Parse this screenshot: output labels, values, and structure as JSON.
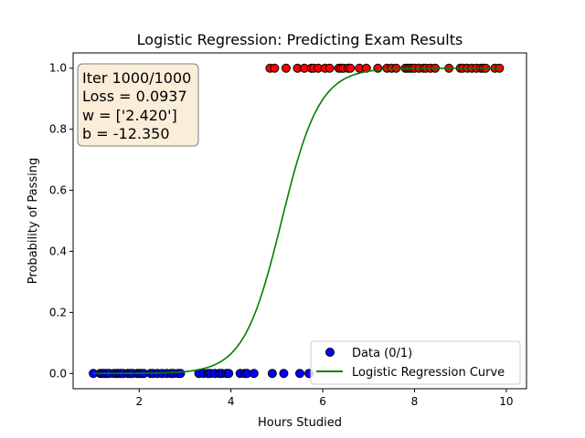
{
  "chart_data": {
    "type": "scatter",
    "title": "Logistic Regression: Predicting Exam Results",
    "xlabel": "Hours Studied",
    "ylabel": "Probability of Passing",
    "xlim": [
      0.56,
      10.44
    ],
    "ylim": [
      -0.05,
      1.05
    ],
    "xticks": [
      2,
      4,
      6,
      8,
      10
    ],
    "yticks": [
      0.0,
      0.2,
      0.4,
      0.6,
      0.8,
      1.0
    ],
    "grid": false,
    "legend_position": "lower-right",
    "legend": [
      {
        "label": "Data (0/1)",
        "kind": "marker"
      },
      {
        "label": "Logistic Regression Curve",
        "kind": "line"
      }
    ],
    "annotation": {
      "lines": [
        "Iter 1000/1000",
        "Loss = 0.0937",
        "w = ['2.420']",
        "b = -12.350"
      ],
      "position": "top-left"
    },
    "model": {
      "w": 2.42,
      "b": -12.35
    },
    "series": [
      {
        "name": "Data (0/1)",
        "class0_color": "#0000ff",
        "class1_color": "#ff0000",
        "points": [
          [
            1.0,
            0
          ],
          [
            1.15,
            0
          ],
          [
            1.2,
            0
          ],
          [
            1.25,
            0
          ],
          [
            1.3,
            0
          ],
          [
            1.35,
            0
          ],
          [
            1.45,
            0
          ],
          [
            1.5,
            0
          ],
          [
            1.55,
            0
          ],
          [
            1.6,
            0
          ],
          [
            1.65,
            0
          ],
          [
            1.75,
            0
          ],
          [
            1.8,
            0
          ],
          [
            1.85,
            0
          ],
          [
            1.95,
            0
          ],
          [
            2.0,
            0
          ],
          [
            2.05,
            0
          ],
          [
            2.1,
            0
          ],
          [
            2.25,
            0
          ],
          [
            2.3,
            0
          ],
          [
            2.4,
            0
          ],
          [
            2.5,
            0
          ],
          [
            2.6,
            0
          ],
          [
            2.7,
            0
          ],
          [
            2.75,
            0
          ],
          [
            2.85,
            0
          ],
          [
            2.9,
            0
          ],
          [
            3.3,
            0
          ],
          [
            3.4,
            0
          ],
          [
            3.5,
            0
          ],
          [
            3.55,
            0
          ],
          [
            3.65,
            0
          ],
          [
            3.75,
            0
          ],
          [
            3.8,
            0
          ],
          [
            3.9,
            0
          ],
          [
            3.95,
            0
          ],
          [
            4.2,
            0
          ],
          [
            4.3,
            0
          ],
          [
            4.35,
            0
          ],
          [
            4.5,
            0
          ],
          [
            4.9,
            0
          ],
          [
            5.15,
            0
          ],
          [
            5.5,
            0
          ],
          [
            5.7,
            0
          ],
          [
            4.85,
            1
          ],
          [
            4.95,
            1
          ],
          [
            5.2,
            1
          ],
          [
            5.45,
            1
          ],
          [
            5.6,
            1
          ],
          [
            5.75,
            1
          ],
          [
            5.8,
            1
          ],
          [
            5.9,
            1
          ],
          [
            6.05,
            1
          ],
          [
            6.15,
            1
          ],
          [
            6.35,
            1
          ],
          [
            6.4,
            1
          ],
          [
            6.45,
            1
          ],
          [
            6.55,
            1
          ],
          [
            6.6,
            1
          ],
          [
            6.8,
            1
          ],
          [
            6.95,
            1
          ],
          [
            7.2,
            1
          ],
          [
            7.4,
            1
          ],
          [
            7.5,
            1
          ],
          [
            7.6,
            1
          ],
          [
            7.8,
            1
          ],
          [
            7.85,
            1
          ],
          [
            7.9,
            1
          ],
          [
            7.95,
            1
          ],
          [
            8.0,
            1
          ],
          [
            8.1,
            1
          ],
          [
            8.2,
            1
          ],
          [
            8.25,
            1
          ],
          [
            8.35,
            1
          ],
          [
            8.45,
            1
          ],
          [
            8.75,
            1
          ],
          [
            9.0,
            1
          ],
          [
            9.05,
            1
          ],
          [
            9.15,
            1
          ],
          [
            9.25,
            1
          ],
          [
            9.35,
            1
          ],
          [
            9.45,
            1
          ],
          [
            9.5,
            1
          ],
          [
            9.55,
            1
          ],
          [
            9.75,
            1
          ],
          [
            9.85,
            1
          ]
        ]
      },
      {
        "name": "Logistic Regression Curve",
        "color": "#008000",
        "x_range": [
          1.0,
          9.85
        ]
      }
    ]
  }
}
